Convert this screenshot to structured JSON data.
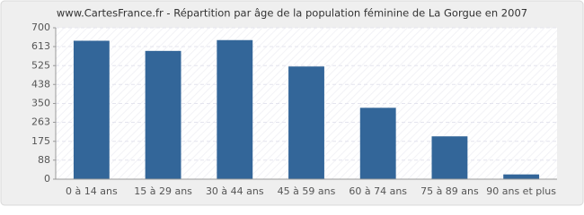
{
  "chart_data": {
    "type": "bar",
    "title": "www.CartesFrance.fr - Répartition par âge de la population féminine de La Gorgue en 2007",
    "categories": [
      "0 à 14 ans",
      "15 à 29 ans",
      "30 à 44 ans",
      "45 à 59 ans",
      "60 à 74 ans",
      "75 à 89 ans",
      "90 ans et plus"
    ],
    "values": [
      640,
      593,
      643,
      521,
      330,
      198,
      22
    ],
    "color": "#336699",
    "ylim": [
      0,
      700
    ],
    "yticks": [
      0,
      88,
      175,
      263,
      350,
      438,
      525,
      613,
      700
    ],
    "grid": true
  }
}
